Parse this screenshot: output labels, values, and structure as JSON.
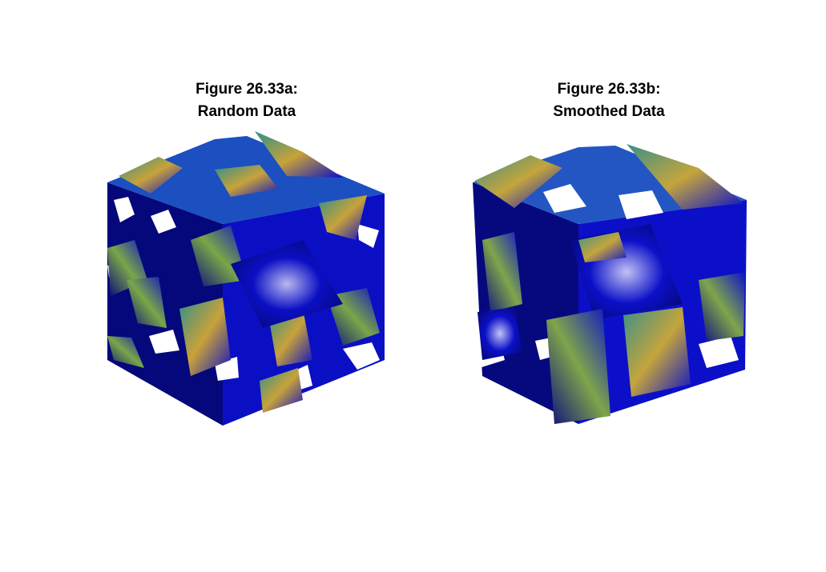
{
  "panels": [
    {
      "title_line1": "Figure 26.33a:",
      "title_line2": "Random Data",
      "colors": {
        "base": "#0b0fc4",
        "dark": "#05087a",
        "mid": "#1c4fc0",
        "teal": "#2f8f8a",
        "green": "#7aa648",
        "yellow": "#c8a23a",
        "highlight": "#b8b8f0"
      }
    },
    {
      "title_line1": "Figure 26.33b:",
      "title_line2": "Smoothed Data",
      "colors": {
        "base": "#0b10c8",
        "dark": "#06097e",
        "mid": "#2356c2",
        "teal": "#3b9088",
        "green": "#7fa54a",
        "yellow": "#c4a53c",
        "highlight": "#c2c2f5"
      }
    }
  ]
}
